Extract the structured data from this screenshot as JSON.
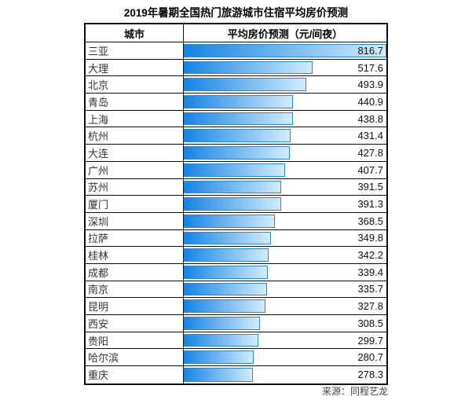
{
  "title": "2019年暑期全国热门旅游城市住宿平均房价预测",
  "table": {
    "city_header": "城市",
    "value_header": "平均房价预测（元/间夜）"
  },
  "source": "来源：同程艺龙",
  "colors": {
    "bar_gradient_start": "#1583e3",
    "bar_gradient_end": "#d2ecfc",
    "bar_border": "#2f86c9",
    "table_border": "#0d0d0d",
    "title_text": "#000000",
    "city_text": "#333333",
    "value_text": "#111111",
    "source_text": "#444444",
    "background": "#ffffff"
  },
  "chart_data": {
    "type": "bar",
    "orientation": "horizontal",
    "title": "2019年暑期全国热门旅游城市住宿平均房价预测",
    "value_label": "平均房价预测（元/间夜）",
    "category_label": "城市",
    "xlim": [
      0,
      816.7
    ],
    "grid": false,
    "legend": "none",
    "categories": [
      "三亚",
      "大理",
      "北京",
      "青岛",
      "上海",
      "杭州",
      "大连",
      "广州",
      "苏州",
      "厦门",
      "深圳",
      "拉萨",
      "桂林",
      "成都",
      "南京",
      "昆明",
      "西安",
      "贵阳",
      "哈尔滨",
      "重庆"
    ],
    "values": [
      816.7,
      517.6,
      493.9,
      440.9,
      438.8,
      431.4,
      427.8,
      407.7,
      391.5,
      391.3,
      368.5,
      349.8,
      342.2,
      339.4,
      335.7,
      327.8,
      308.5,
      299.7,
      280.7,
      278.3
    ]
  }
}
